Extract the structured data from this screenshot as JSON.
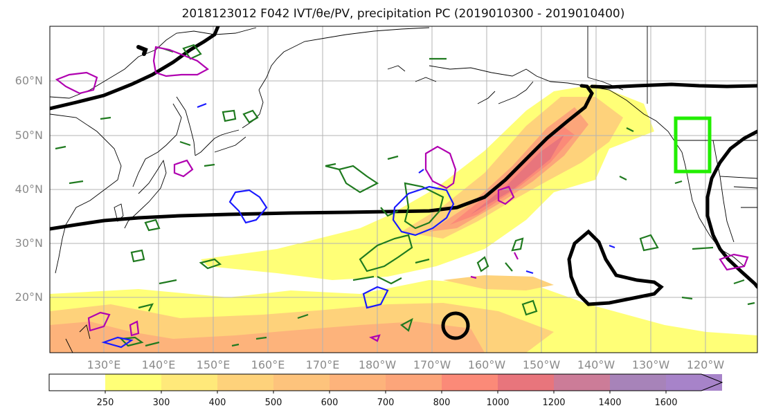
{
  "title": "2018123012 F042 IVT/θe/PV, precipitation PC (2019010300 - 2019010400)",
  "map": {
    "lat_labels": [
      "60°N",
      "50°N",
      "40°N",
      "30°N",
      "20°N"
    ],
    "lon_labels": [
      "130°E",
      "140°E",
      "150°E",
      "160°E",
      "170°E",
      "180°W",
      "170°W",
      "160°W",
      "150°W",
      "140°W",
      "130°W",
      "120°W"
    ],
    "colors": {
      "theta_e_contour": "#000000",
      "pv_contour": "#1f7a1f",
      "blue_contour": "#1a1aff",
      "magenta_contour": "#b000b0",
      "highlight_box": "#22ee00"
    }
  },
  "colorbar": {
    "ticks": [
      "250",
      "300",
      "400",
      "500",
      "600",
      "700",
      "800",
      "1000",
      "1200",
      "1400",
      "1600"
    ],
    "colors": [
      "#ffffff",
      "#ffff77",
      "#ffe97a",
      "#fed27b",
      "#fdc37c",
      "#fdb37b",
      "#fca57a",
      "#fb8a78",
      "#e8757c",
      "#cc7c98",
      "#a783b9",
      "#a783c9"
    ]
  }
}
